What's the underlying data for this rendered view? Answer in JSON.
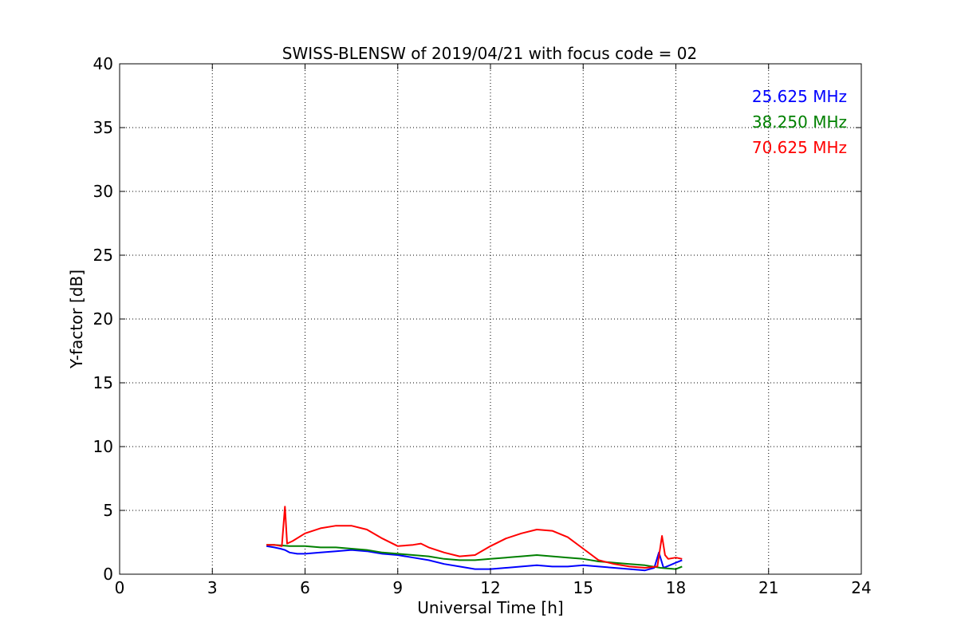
{
  "chart_data": {
    "type": "line",
    "title": "SWISS-BLENSW of 2019/04/21 with focus code = 02",
    "xlabel": "Universal Time [h]",
    "ylabel": "Y-factor [dB]",
    "xlim": [
      0,
      24
    ],
    "ylim": [
      0,
      40
    ],
    "xticks": [
      0,
      3,
      6,
      9,
      12,
      15,
      18,
      21,
      24
    ],
    "yticks": [
      0,
      5,
      10,
      15,
      20,
      25,
      30,
      35,
      40
    ],
    "grid": true,
    "legend_position": "top-right",
    "series": [
      {
        "name": "25.625 MHz",
        "color": "#0000ff",
        "x": [
          4.75,
          5.0,
          5.2,
          5.35,
          5.5,
          5.75,
          6.0,
          6.5,
          7.0,
          7.5,
          8.0,
          8.5,
          9.0,
          9.5,
          10.0,
          10.5,
          11.0,
          11.5,
          12.0,
          12.5,
          13.0,
          13.5,
          14.0,
          14.5,
          15.0,
          15.5,
          16.0,
          16.5,
          17.0,
          17.3,
          17.45,
          17.6,
          17.8,
          18.0,
          18.2
        ],
        "y": [
          2.2,
          2.1,
          2.0,
          1.9,
          1.7,
          1.6,
          1.6,
          1.7,
          1.8,
          1.9,
          1.8,
          1.6,
          1.5,
          1.3,
          1.1,
          0.8,
          0.6,
          0.4,
          0.4,
          0.5,
          0.6,
          0.7,
          0.6,
          0.6,
          0.7,
          0.6,
          0.5,
          0.4,
          0.3,
          0.5,
          1.7,
          0.5,
          0.7,
          0.9,
          1.1
        ]
      },
      {
        "name": "38.250 MHz",
        "color": "#008000",
        "x": [
          4.75,
          5.0,
          5.5,
          6.0,
          6.5,
          7.0,
          7.5,
          8.0,
          8.5,
          9.0,
          9.5,
          10.0,
          10.5,
          11.0,
          11.5,
          12.0,
          12.5,
          13.0,
          13.5,
          14.0,
          14.5,
          15.0,
          15.5,
          16.0,
          16.5,
          17.0,
          17.5,
          18.0,
          18.2
        ],
        "y": [
          2.3,
          2.3,
          2.2,
          2.2,
          2.1,
          2.1,
          2.0,
          1.9,
          1.7,
          1.6,
          1.5,
          1.4,
          1.2,
          1.1,
          1.1,
          1.2,
          1.3,
          1.4,
          1.5,
          1.4,
          1.3,
          1.2,
          1.0,
          0.9,
          0.8,
          0.7,
          0.5,
          0.4,
          0.6
        ]
      },
      {
        "name": "70.625 MHz",
        "color": "#ff0000",
        "x": [
          4.75,
          5.0,
          5.25,
          5.35,
          5.42,
          5.6,
          6.0,
          6.5,
          7.0,
          7.5,
          8.0,
          8.5,
          9.0,
          9.5,
          9.75,
          10.0,
          10.5,
          11.0,
          11.5,
          12.0,
          12.5,
          13.0,
          13.5,
          14.0,
          14.5,
          15.0,
          15.5,
          16.0,
          16.5,
          17.0,
          17.4,
          17.55,
          17.65,
          17.75,
          18.0,
          18.2
        ],
        "y": [
          2.3,
          2.3,
          2.2,
          5.3,
          2.4,
          2.6,
          3.2,
          3.6,
          3.8,
          3.8,
          3.5,
          2.8,
          2.2,
          2.3,
          2.4,
          2.1,
          1.7,
          1.4,
          1.5,
          2.2,
          2.8,
          3.2,
          3.5,
          3.4,
          2.9,
          2.0,
          1.1,
          0.8,
          0.6,
          0.5,
          0.6,
          3.0,
          1.5,
          1.2,
          1.3,
          1.2
        ]
      }
    ]
  }
}
